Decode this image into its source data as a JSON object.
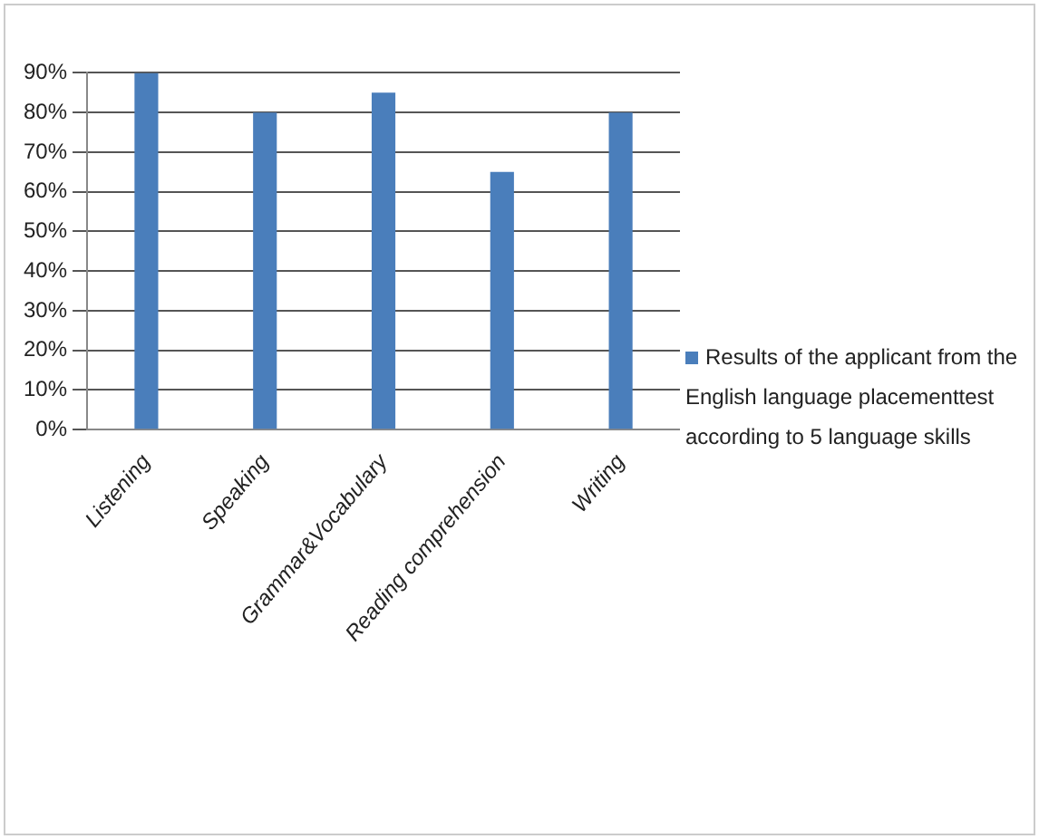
{
  "chart_data": {
    "type": "bar",
    "categories": [
      "Listening",
      "Speaking",
      "Grammar&Vocabulary",
      "Reading comprehension",
      "Writing"
    ],
    "series": [
      {
        "name": "Results of the applicant from the English language placementtest according to 5 language skills",
        "color": "#4a7ebb",
        "values": [
          90,
          80,
          85,
          65,
          80
        ]
      }
    ],
    "ylim": [
      0,
      90
    ],
    "yticks": [
      {
        "value": 0,
        "label": "0%"
      },
      {
        "value": 10,
        "label": "10%"
      },
      {
        "value": 20,
        "label": "20%"
      },
      {
        "value": 30,
        "label": "30%"
      },
      {
        "value": 40,
        "label": "40%"
      },
      {
        "value": 50,
        "label": "50%"
      },
      {
        "value": 60,
        "label": "60%"
      },
      {
        "value": 70,
        "label": "70%"
      },
      {
        "value": 80,
        "label": "80%"
      },
      {
        "value": 90,
        "label": "90%"
      }
    ],
    "grid": "y",
    "legend": "right"
  }
}
